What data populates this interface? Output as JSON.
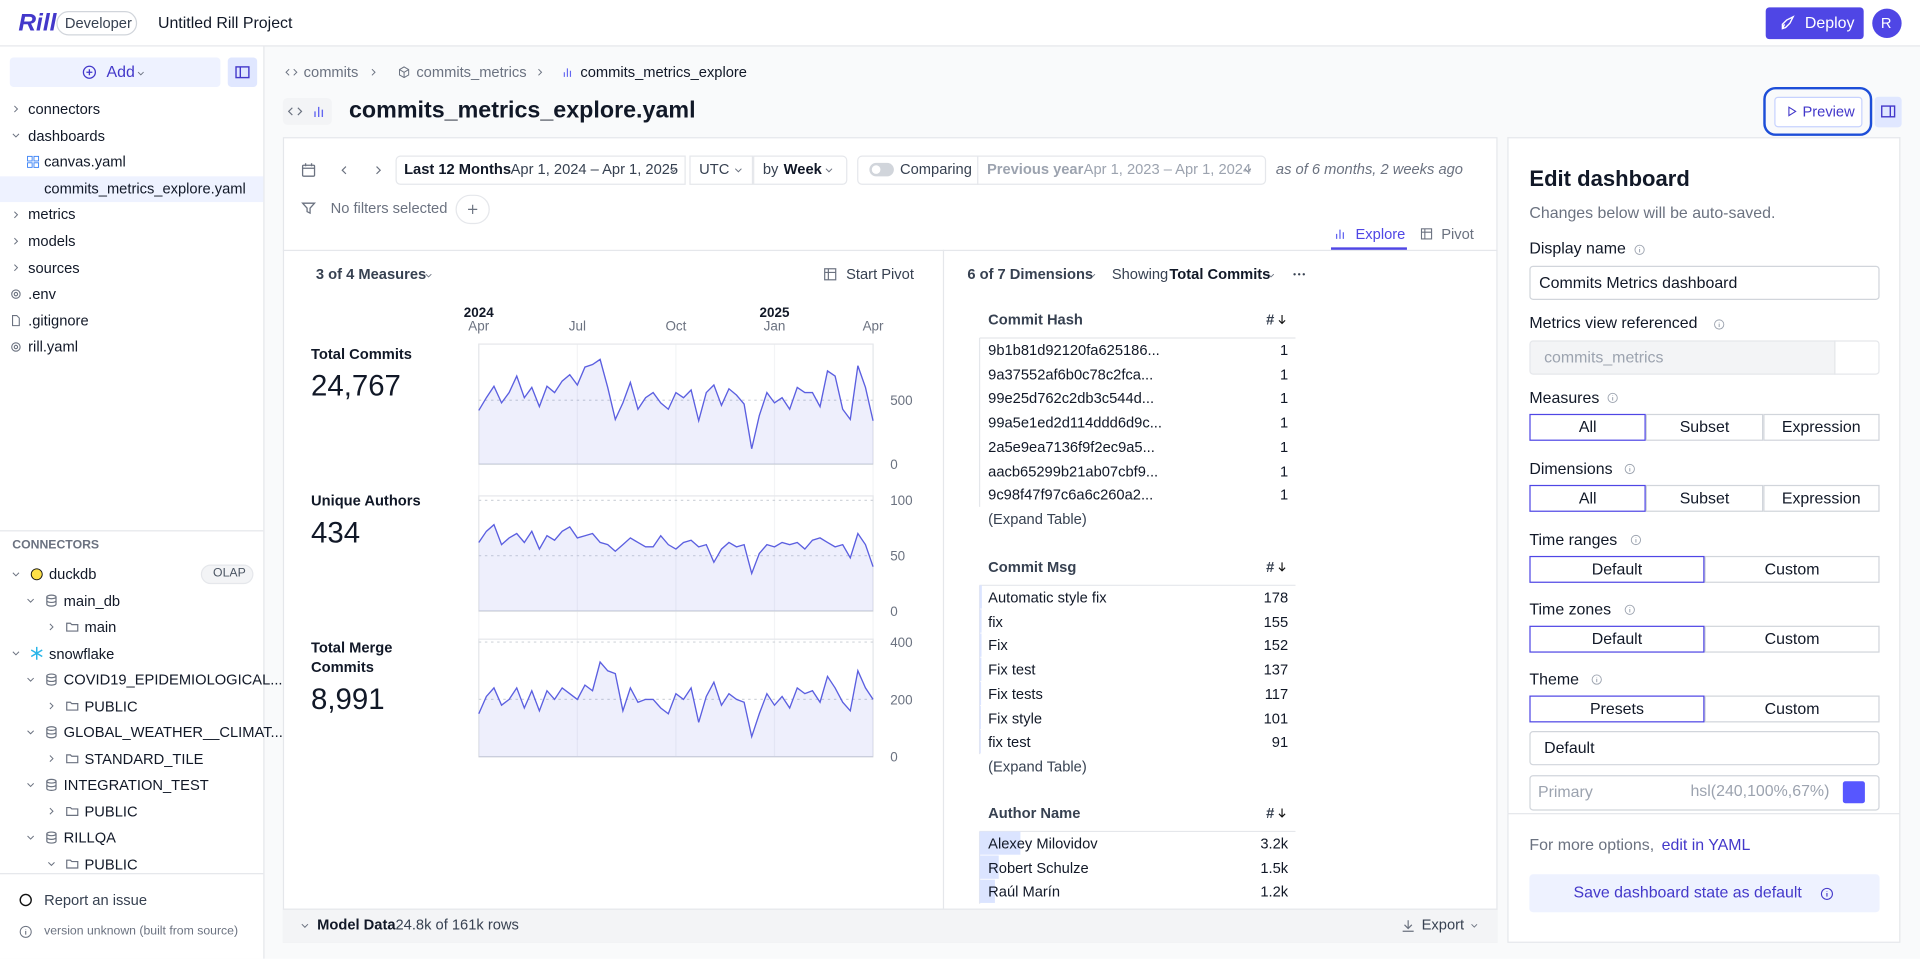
{
  "header": {
    "logo": "Rill",
    "env": "Developer",
    "project": "Untitled Rill Project",
    "deploy": "Deploy",
    "avatar": "R"
  },
  "sidebar": {
    "add": "Add",
    "files": [
      {
        "label": "connectors",
        "kind": "folder"
      },
      {
        "label": "dashboards",
        "kind": "folder-open"
      },
      {
        "label": "canvas.yaml",
        "kind": "canvas"
      },
      {
        "label": "commits_metrics_explore.yaml",
        "kind": "explore",
        "active": true
      },
      {
        "label": "metrics",
        "kind": "folder"
      },
      {
        "label": "models",
        "kind": "folder"
      },
      {
        "label": "sources",
        "kind": "folder"
      },
      {
        "label": ".env",
        "kind": "gear"
      },
      {
        "label": ".gitignore",
        "kind": "file"
      },
      {
        "label": "rill.yaml",
        "kind": "gear"
      }
    ],
    "connectors_title": "CONNECTORS",
    "connectors": [
      {
        "label": "duckdb",
        "level": 0,
        "badge": "OLAP",
        "icon": "duckdb",
        "expanded": true
      },
      {
        "label": "main_db",
        "level": 1,
        "expanded": true
      },
      {
        "label": "main",
        "level": 2,
        "expanded": false
      },
      {
        "label": "snowflake",
        "level": 0,
        "icon": "snowflake",
        "expanded": true
      },
      {
        "label": "COVID19_EPIDEMIOLOGICAL...",
        "level": 1,
        "expanded": true
      },
      {
        "label": "PUBLIC",
        "level": 2,
        "expanded": false
      },
      {
        "label": "GLOBAL_WEATHER__CLIMAT...",
        "level": 1,
        "expanded": true
      },
      {
        "label": "STANDARD_TILE",
        "level": 2,
        "expanded": false
      },
      {
        "label": "INTEGRATION_TEST",
        "level": 1,
        "expanded": true
      },
      {
        "label": "PUBLIC",
        "level": 2,
        "expanded": false
      },
      {
        "label": "RILLQA",
        "level": 1,
        "expanded": true
      },
      {
        "label": "PUBLIC",
        "level": 2,
        "expanded": true
      }
    ],
    "report": "Report an issue",
    "version": "version unknown (built from source)"
  },
  "breadcrumb": [
    "commits",
    "commits_metrics",
    "commits_metrics_explore"
  ],
  "file_title": "commits_metrics_explore.yaml",
  "preview": "Preview",
  "toolbar": {
    "range": "Last 12 Months",
    "dates": "Apr 1, 2024 – Apr 1, 2025",
    "timezone": "UTC",
    "grain_prefix": "by",
    "grain": "Week",
    "comparing": "Comparing",
    "compare_range": "Previous year",
    "compare_dates": "Apr 1, 2023 – Apr 1, 2024",
    "as_of": "as of 6 months, 2 weeks ago",
    "filters": "No filters selected",
    "tabs": [
      "Explore",
      "Pivot"
    ]
  },
  "measures_header": "3 of 4 Measures",
  "start_pivot": "Start Pivot",
  "time_axis": {
    "xlim": [
      0,
      52
    ],
    "xticks": [
      {
        "value": 0,
        "label": "Apr"
      },
      {
        "value": 13,
        "label": "Jul"
      },
      {
        "value": 26,
        "label": "Oct"
      },
      {
        "value": 39,
        "label": "Jan"
      },
      {
        "value": 52,
        "label": "Apr"
      }
    ],
    "years": [
      {
        "value": 0,
        "label": "2024"
      },
      {
        "value": 39,
        "label": "2025"
      }
    ]
  },
  "chart_data": [
    {
      "type": "line",
      "title": "Total Commits",
      "value": 24767,
      "value_label": "24,767",
      "color": "#5b5fe0",
      "ylim": [
        0,
        940
      ],
      "yticks": [
        0,
        500
      ],
      "values": [
        420,
        520,
        610,
        480,
        560,
        690,
        520,
        600,
        450,
        610,
        560,
        650,
        700,
        620,
        760,
        780,
        820,
        600,
        350,
        480,
        640,
        430,
        520,
        560,
        480,
        430,
        560,
        520,
        580,
        340,
        560,
        620,
        460,
        590,
        540,
        470,
        120,
        380,
        560,
        480,
        520,
        430,
        600,
        560,
        560,
        450,
        730,
        690,
        430,
        350,
        770,
        600,
        340
      ]
    },
    {
      "type": "line",
      "title": "Unique Authors",
      "value": 434,
      "color": "#5b5fe0",
      "ylim": [
        0,
        104
      ],
      "yticks": [
        0,
        50,
        100
      ],
      "values": [
        62,
        72,
        78,
        60,
        66,
        70,
        62,
        72,
        56,
        68,
        64,
        72,
        76,
        66,
        68,
        70,
        62,
        60,
        54,
        60,
        66,
        62,
        58,
        58,
        68,
        60,
        56,
        62,
        64,
        58,
        60,
        44,
        56,
        62,
        58,
        60,
        34,
        52,
        60,
        58,
        62,
        60,
        62,
        56,
        64,
        66,
        62,
        58,
        60,
        48,
        70,
        60,
        40
      ]
    },
    {
      "type": "line",
      "title": "Total Merge Commits",
      "value": 8991,
      "value_label": "8,991",
      "color": "#5b5fe0",
      "ylim": [
        0,
        410
      ],
      "yticks": [
        0,
        200,
        400
      ],
      "values": [
        150,
        210,
        240,
        180,
        200,
        240,
        170,
        230,
        160,
        230,
        200,
        240,
        220,
        200,
        250,
        230,
        330,
        300,
        290,
        160,
        240,
        190,
        200,
        200,
        170,
        150,
        220,
        200,
        240,
        120,
        210,
        260,
        180,
        220,
        200,
        190,
        70,
        150,
        220,
        180,
        210,
        170,
        240,
        220,
        230,
        190,
        280,
        240,
        190,
        160,
        300,
        240,
        200
      ]
    }
  ],
  "dimensions_header": "6 of 7 Dimensions",
  "showing": "Showing",
  "showing_measure": "Total Commits",
  "leaderboards": [
    {
      "title": "Commit Hash",
      "column": "#",
      "expand": "(Expand Table)",
      "rows": [
        {
          "label": "9b1b81d92120fa625186...",
          "value": 1
        },
        {
          "label": "9a37552af6b0c78c2fca...",
          "value": 1
        },
        {
          "label": "99e25d762c2db3c544d...",
          "value": 1
        },
        {
          "label": "99a5e1ed2d114ddd6d9c...",
          "value": 1
        },
        {
          "label": "2a5e9ea7136f9f2ec9a5...",
          "value": 1
        },
        {
          "label": "aacb65299b21ab07cbf9...",
          "value": 1
        },
        {
          "label": "9c98f47f97c6a6c260a2...",
          "value": 1
        }
      ]
    },
    {
      "title": "Commit Msg",
      "column": "#",
      "expand": "(Expand Table)",
      "rows": [
        {
          "label": "Automatic style fix",
          "value": 178
        },
        {
          "label": "fix",
          "value": 155
        },
        {
          "label": "Fix",
          "value": 152
        },
        {
          "label": "Fix test",
          "value": 137
        },
        {
          "label": "Fix tests",
          "value": 117
        },
        {
          "label": "Fix style",
          "value": 101
        },
        {
          "label": "fix test",
          "value": 91
        }
      ]
    },
    {
      "title": "Author Name",
      "column": "#",
      "rows": [
        {
          "label": "Alexey Milovidov",
          "value": 3200,
          "value_label": "3.2k"
        },
        {
          "label": "Robert Schulze",
          "value": 1500,
          "value_label": "1.5k"
        },
        {
          "label": "Raúl Marín",
          "value": 1200,
          "value_label": "1.2k"
        }
      ]
    }
  ],
  "bottom_bar": {
    "title": "Model Data",
    "rows": "24.8k of 161k rows",
    "export": "Export"
  },
  "panel": {
    "title": "Edit dashboard",
    "subtitle": "Changes below will be auto-saved.",
    "display_name": {
      "label": "Display name",
      "value": "Commits Metrics dashboard"
    },
    "metrics_view": {
      "label": "Metrics view referenced",
      "value": "commits_metrics"
    },
    "choices": [
      {
        "label": "Measures",
        "options": [
          "All",
          "Subset",
          "Expression"
        ],
        "selected": 0
      },
      {
        "label": "Dimensions",
        "options": [
          "All",
          "Subset",
          "Expression"
        ],
        "selected": 0
      },
      {
        "label": "Time ranges",
        "options": [
          "Default",
          "Custom"
        ],
        "selected": 0
      },
      {
        "label": "Time zones",
        "options": [
          "Default",
          "Custom"
        ],
        "selected": 0
      },
      {
        "label": "Theme",
        "options": [
          "Presets",
          "Custom"
        ],
        "selected": 0
      }
    ],
    "theme_select": "Default",
    "primary": {
      "label": "Primary",
      "value": "hsl(240,100%,67%)"
    },
    "more": "For more options,",
    "yaml_link": "edit in YAML",
    "save": "Save dashboard state as default"
  }
}
